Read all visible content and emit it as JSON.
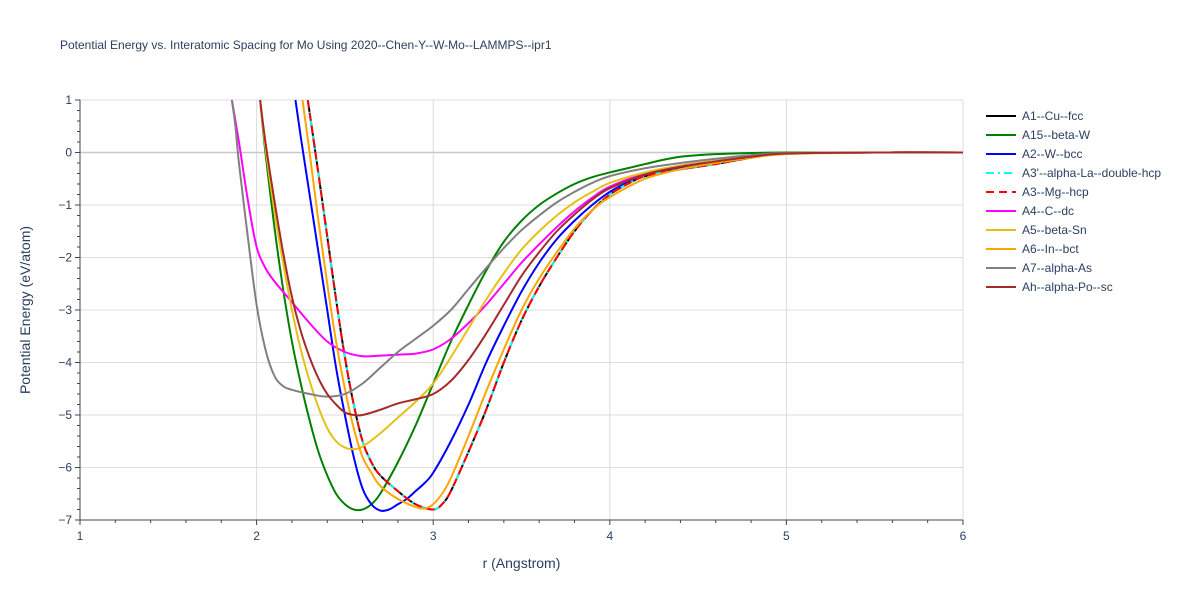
{
  "chart_data": {
    "type": "line",
    "title": "Potential Energy vs. Interatomic Spacing for Mo Using 2020--Chen-Y--W-Mo--LAMMPS--ipr1",
    "xlabel": "r (Angstrom)",
    "ylabel": "Potential Energy (eV/atom)",
    "xlim": [
      1,
      6
    ],
    "ylim": [
      -7,
      1
    ],
    "xticks": [
      1,
      2,
      3,
      4,
      5,
      6
    ],
    "yticks": [
      1,
      0,
      -1,
      -2,
      -3,
      -4,
      -5,
      -6,
      -7
    ],
    "xtick_labels": [
      "1",
      "2",
      "3",
      "4",
      "5",
      "6"
    ],
    "ytick_labels": [
      "1",
      "0",
      "−1",
      "−2",
      "−3",
      "−4",
      "−5",
      "−6",
      "−7"
    ],
    "grid": true,
    "legend_position": "right",
    "series": [
      {
        "name": "A1--Cu--fcc",
        "color": "#000000",
        "dash": "solid",
        "x": [
          2.29,
          2.35,
          2.4,
          2.45,
          2.5,
          2.55,
          2.6,
          2.65,
          2.7,
          2.8,
          2.9,
          3.0,
          3.05,
          3.1,
          3.2,
          3.3,
          3.4,
          3.5,
          3.6,
          3.7,
          3.8,
          3.9,
          4.0,
          4.1,
          4.2,
          4.4,
          4.6,
          4.8,
          5.0,
          5.5,
          6.0
        ],
        "y": [
          1.0,
          -0.4,
          -1.6,
          -2.8,
          -3.9,
          -4.8,
          -5.5,
          -5.9,
          -6.15,
          -6.45,
          -6.7,
          -6.8,
          -6.7,
          -6.45,
          -5.7,
          -4.9,
          -4.0,
          -3.2,
          -2.55,
          -2.0,
          -1.5,
          -1.1,
          -0.8,
          -0.6,
          -0.45,
          -0.32,
          -0.22,
          -0.1,
          -0.02,
          0.0,
          0.0
        ]
      },
      {
        "name": "A15--beta-W",
        "color": "#008000",
        "dash": "solid",
        "x": [
          2.02,
          2.05,
          2.1,
          2.15,
          2.2,
          2.25,
          2.3,
          2.35,
          2.4,
          2.45,
          2.5,
          2.55,
          2.6,
          2.65,
          2.7,
          2.8,
          2.9,
          3.0,
          3.1,
          3.2,
          3.3,
          3.4,
          3.5,
          3.6,
          3.7,
          3.8,
          3.9,
          4.0,
          4.1,
          4.2,
          4.3,
          4.4,
          4.5,
          4.6,
          4.8,
          5.0,
          5.5,
          6.0
        ],
        "y": [
          1.0,
          0.0,
          -1.4,
          -2.6,
          -3.6,
          -4.4,
          -5.1,
          -5.7,
          -6.15,
          -6.5,
          -6.7,
          -6.8,
          -6.8,
          -6.7,
          -6.5,
          -5.9,
          -5.2,
          -4.4,
          -3.6,
          -2.9,
          -2.25,
          -1.7,
          -1.3,
          -1.0,
          -0.78,
          -0.6,
          -0.47,
          -0.38,
          -0.3,
          -0.22,
          -0.14,
          -0.08,
          -0.05,
          -0.03,
          -0.01,
          0.0,
          0.0,
          0.0
        ]
      },
      {
        "name": "A2--W--bcc",
        "color": "#0000ff",
        "dash": "solid",
        "x": [
          2.22,
          2.25,
          2.3,
          2.35,
          2.4,
          2.45,
          2.5,
          2.55,
          2.6,
          2.65,
          2.7,
          2.75,
          2.8,
          2.85,
          2.9,
          2.95,
          3.0,
          3.1,
          3.2,
          3.3,
          3.4,
          3.5,
          3.6,
          3.7,
          3.8,
          3.9,
          4.0,
          4.1,
          4.2,
          4.4,
          4.6,
          4.8,
          5.0,
          5.5,
          6.0
        ],
        "y": [
          1.0,
          0.3,
          -0.8,
          -1.9,
          -3.0,
          -4.1,
          -5.0,
          -5.8,
          -6.4,
          -6.7,
          -6.82,
          -6.8,
          -6.7,
          -6.6,
          -6.45,
          -6.3,
          -6.1,
          -5.5,
          -4.8,
          -4.0,
          -3.3,
          -2.65,
          -2.1,
          -1.65,
          -1.3,
          -1.0,
          -0.75,
          -0.57,
          -0.43,
          -0.28,
          -0.18,
          -0.08,
          -0.02,
          0.0,
          0.0
        ]
      },
      {
        "name": "A3'--alpha-La--double-hcp",
        "color": "#00ffff",
        "dash": "dashdot",
        "x": [
          2.29,
          2.35,
          2.4,
          2.45,
          2.5,
          2.55,
          2.6,
          2.65,
          2.7,
          2.8,
          2.9,
          3.0,
          3.05,
          3.1,
          3.2,
          3.3,
          3.4,
          3.5,
          3.6,
          3.7,
          3.8,
          3.9,
          4.0,
          4.1,
          4.2,
          4.4,
          4.6,
          4.8,
          5.0,
          5.5,
          6.0
        ],
        "y": [
          1.0,
          -0.4,
          -1.6,
          -2.8,
          -3.9,
          -4.8,
          -5.5,
          -5.9,
          -6.15,
          -6.45,
          -6.7,
          -6.8,
          -6.7,
          -6.45,
          -5.7,
          -4.9,
          -4.0,
          -3.2,
          -2.55,
          -2.0,
          -1.5,
          -1.1,
          -0.8,
          -0.6,
          -0.45,
          -0.32,
          -0.22,
          -0.1,
          -0.02,
          0.0,
          0.0
        ]
      },
      {
        "name": "A3--Mg--hcp",
        "color": "#ff0000",
        "dash": "dash",
        "x": [
          2.29,
          2.35,
          2.4,
          2.45,
          2.5,
          2.55,
          2.6,
          2.65,
          2.7,
          2.8,
          2.9,
          3.0,
          3.05,
          3.1,
          3.2,
          3.3,
          3.4,
          3.5,
          3.6,
          3.7,
          3.8,
          3.9,
          4.0,
          4.1,
          4.2,
          4.4,
          4.6,
          4.8,
          5.0,
          5.5,
          6.0
        ],
        "y": [
          1.0,
          -0.4,
          -1.6,
          -2.8,
          -3.9,
          -4.8,
          -5.5,
          -5.9,
          -6.15,
          -6.45,
          -6.7,
          -6.8,
          -6.7,
          -6.45,
          -5.7,
          -4.9,
          -4.0,
          -3.2,
          -2.55,
          -2.0,
          -1.5,
          -1.1,
          -0.8,
          -0.6,
          -0.45,
          -0.32,
          -0.22,
          -0.1,
          -0.02,
          0.0,
          0.0
        ]
      },
      {
        "name": "A4--C--dc",
        "color": "#ff00ff",
        "dash": "solid",
        "x": [
          1.86,
          1.9,
          1.95,
          2.0,
          2.05,
          2.1,
          2.2,
          2.3,
          2.4,
          2.5,
          2.6,
          2.7,
          2.8,
          2.9,
          3.0,
          3.1,
          3.2,
          3.3,
          3.4,
          3.5,
          3.6,
          3.7,
          3.8,
          3.9,
          4.0,
          4.2,
          4.4,
          4.6,
          4.8,
          5.0,
          5.5,
          6.0
        ],
        "y": [
          1.0,
          0.2,
          -0.9,
          -1.8,
          -2.2,
          -2.45,
          -2.85,
          -3.25,
          -3.6,
          -3.8,
          -3.88,
          -3.87,
          -3.85,
          -3.83,
          -3.75,
          -3.55,
          -3.25,
          -2.9,
          -2.5,
          -2.1,
          -1.75,
          -1.42,
          -1.12,
          -0.86,
          -0.65,
          -0.4,
          -0.25,
          -0.16,
          -0.08,
          -0.02,
          0.0,
          0.0
        ]
      },
      {
        "name": "A5--beta-Sn",
        "color": "#e6c019",
        "dash": "solid",
        "x": [
          2.02,
          2.05,
          2.1,
          2.15,
          2.2,
          2.25,
          2.3,
          2.35,
          2.4,
          2.45,
          2.5,
          2.55,
          2.6,
          2.7,
          2.8,
          2.9,
          3.0,
          3.1,
          3.2,
          3.3,
          3.4,
          3.5,
          3.6,
          3.7,
          3.8,
          3.9,
          4.0,
          4.2,
          4.4,
          4.6,
          4.8,
          5.0,
          5.5,
          6.0
        ],
        "y": [
          1.0,
          0.1,
          -1.1,
          -2.1,
          -3.0,
          -3.75,
          -4.35,
          -4.85,
          -5.25,
          -5.5,
          -5.62,
          -5.65,
          -5.6,
          -5.35,
          -5.05,
          -4.75,
          -4.4,
          -3.9,
          -3.35,
          -2.8,
          -2.3,
          -1.85,
          -1.5,
          -1.2,
          -0.95,
          -0.75,
          -0.58,
          -0.38,
          -0.25,
          -0.16,
          -0.08,
          -0.02,
          0.0,
          0.0
        ]
      },
      {
        "name": "A6--In--bct",
        "color": "#ffa500",
        "dash": "solid",
        "x": [
          2.26,
          2.3,
          2.35,
          2.4,
          2.45,
          2.5,
          2.55,
          2.6,
          2.65,
          2.7,
          2.8,
          2.9,
          2.95,
          3.0,
          3.05,
          3.1,
          3.2,
          3.3,
          3.4,
          3.5,
          3.6,
          3.7,
          3.8,
          3.9,
          4.0,
          4.2,
          4.4,
          4.6,
          4.8,
          5.0,
          5.5,
          6.0
        ],
        "y": [
          1.0,
          0.0,
          -1.3,
          -2.5,
          -3.6,
          -4.5,
          -5.25,
          -5.8,
          -6.1,
          -6.35,
          -6.6,
          -6.75,
          -6.78,
          -6.7,
          -6.5,
          -6.2,
          -5.4,
          -4.55,
          -3.75,
          -3.0,
          -2.4,
          -1.9,
          -1.45,
          -1.1,
          -0.85,
          -0.5,
          -0.32,
          -0.2,
          -0.1,
          -0.03,
          0.0,
          0.0
        ]
      },
      {
        "name": "A7--alpha-As",
        "color": "#808080",
        "dash": "solid",
        "x": [
          1.86,
          1.88,
          1.9,
          1.95,
          2.0,
          2.05,
          2.1,
          2.15,
          2.2,
          2.3,
          2.4,
          2.5,
          2.6,
          2.7,
          2.8,
          2.9,
          3.0,
          3.1,
          3.2,
          3.3,
          3.4,
          3.5,
          3.6,
          3.7,
          3.8,
          3.9,
          4.0,
          4.2,
          4.4,
          4.6,
          4.8,
          5.0,
          5.5,
          6.0
        ],
        "y": [
          1.0,
          0.5,
          -0.2,
          -1.6,
          -2.9,
          -3.75,
          -4.25,
          -4.45,
          -4.52,
          -4.6,
          -4.65,
          -4.6,
          -4.4,
          -4.1,
          -3.8,
          -3.55,
          -3.3,
          -3.0,
          -2.6,
          -2.2,
          -1.82,
          -1.48,
          -1.2,
          -0.95,
          -0.75,
          -0.58,
          -0.45,
          -0.3,
          -0.2,
          -0.12,
          -0.05,
          -0.01,
          0.0,
          0.0
        ]
      },
      {
        "name": "Ah--alpha-Po--sc",
        "color": "#a52a2a",
        "dash": "solid",
        "x": [
          2.02,
          2.05,
          2.1,
          2.15,
          2.2,
          2.25,
          2.3,
          2.35,
          2.4,
          2.45,
          2.5,
          2.55,
          2.6,
          2.7,
          2.8,
          2.9,
          3.0,
          3.1,
          3.2,
          3.3,
          3.4,
          3.5,
          3.6,
          3.7,
          3.8,
          3.9,
          4.0,
          4.2,
          4.4,
          4.6,
          4.8,
          5.0,
          5.5,
          6.0
        ],
        "y": [
          1.0,
          0.2,
          -0.9,
          -1.9,
          -2.75,
          -3.4,
          -3.9,
          -4.3,
          -4.6,
          -4.8,
          -4.95,
          -5.0,
          -5.0,
          -4.9,
          -4.78,
          -4.7,
          -4.6,
          -4.35,
          -3.95,
          -3.45,
          -2.9,
          -2.35,
          -1.9,
          -1.5,
          -1.18,
          -0.9,
          -0.68,
          -0.42,
          -0.27,
          -0.17,
          -0.08,
          -0.02,
          0.0,
          0.0
        ]
      }
    ]
  }
}
